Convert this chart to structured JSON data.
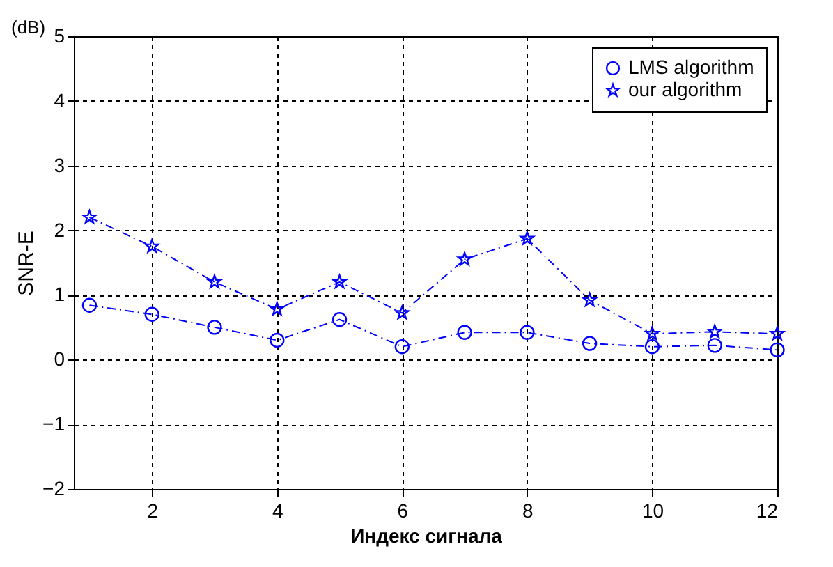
{
  "chart_data": {
    "type": "line",
    "xlabel": "Индекс сигнала",
    "ylabel": "SNR-E",
    "annotations": [
      "(dB)"
    ],
    "x": [
      1,
      2,
      3,
      4,
      5,
      6,
      7,
      8,
      9,
      10,
      11,
      12
    ],
    "series": [
      {
        "name": "LMS algorithm",
        "color": "#0000ff",
        "marker": "circle",
        "values": [
          0.84,
          0.7,
          0.5,
          0.3,
          0.62,
          0.2,
          0.42,
          0.42,
          0.25,
          0.2,
          0.22,
          0.15
        ]
      },
      {
        "name": "our algorithm",
        "color": "#0000ff",
        "marker": "star",
        "values": [
          2.2,
          1.75,
          1.2,
          0.78,
          1.2,
          0.72,
          1.55,
          1.87,
          0.92,
          0.4,
          0.43,
          0.4
        ]
      }
    ],
    "xlim": [
      0.75,
      12
    ],
    "xticks": [
      2,
      4,
      6,
      8,
      10,
      12
    ],
    "ylim": [
      -2,
      5
    ],
    "yticks": [
      -2,
      -1,
      0,
      1,
      2,
      3,
      4,
      5
    ],
    "grid": true,
    "legend": "top right",
    "line_style": "dashed"
  }
}
